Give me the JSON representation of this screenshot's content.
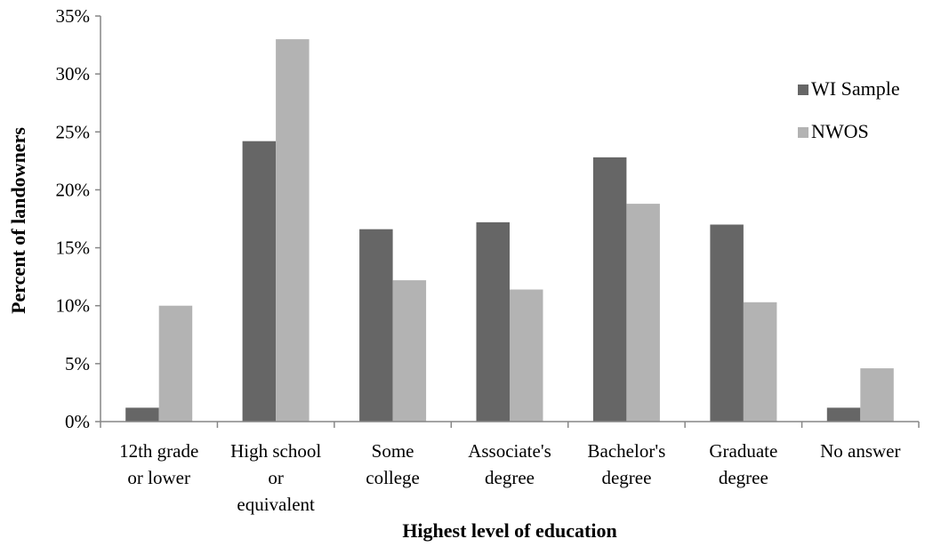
{
  "chart_data": {
    "type": "bar",
    "title": "",
    "xlabel": "Highest level of education",
    "ylabel": "Percent of landowners",
    "ylim": [
      0,
      35
    ],
    "ytick_step": 5,
    "ytick_format": "percent",
    "grid": false,
    "legend_position": "right",
    "categories": [
      [
        "12th grade",
        "or lower"
      ],
      [
        "High school",
        "or",
        "equivalent"
      ],
      [
        "Some",
        "college"
      ],
      [
        "Associate's",
        "degree"
      ],
      [
        "Bachelor's",
        "degree"
      ],
      [
        "Graduate",
        "degree"
      ],
      [
        "No answer"
      ]
    ],
    "series": [
      {
        "name": "WI Sample",
        "color": "#666666",
        "values": [
          1.2,
          24.2,
          16.6,
          17.2,
          22.8,
          17.0,
          1.2
        ]
      },
      {
        "name": "NWOS",
        "color": "#b3b3b3",
        "values": [
          10.0,
          33.0,
          12.2,
          11.4,
          18.8,
          10.3,
          4.6
        ]
      }
    ]
  }
}
